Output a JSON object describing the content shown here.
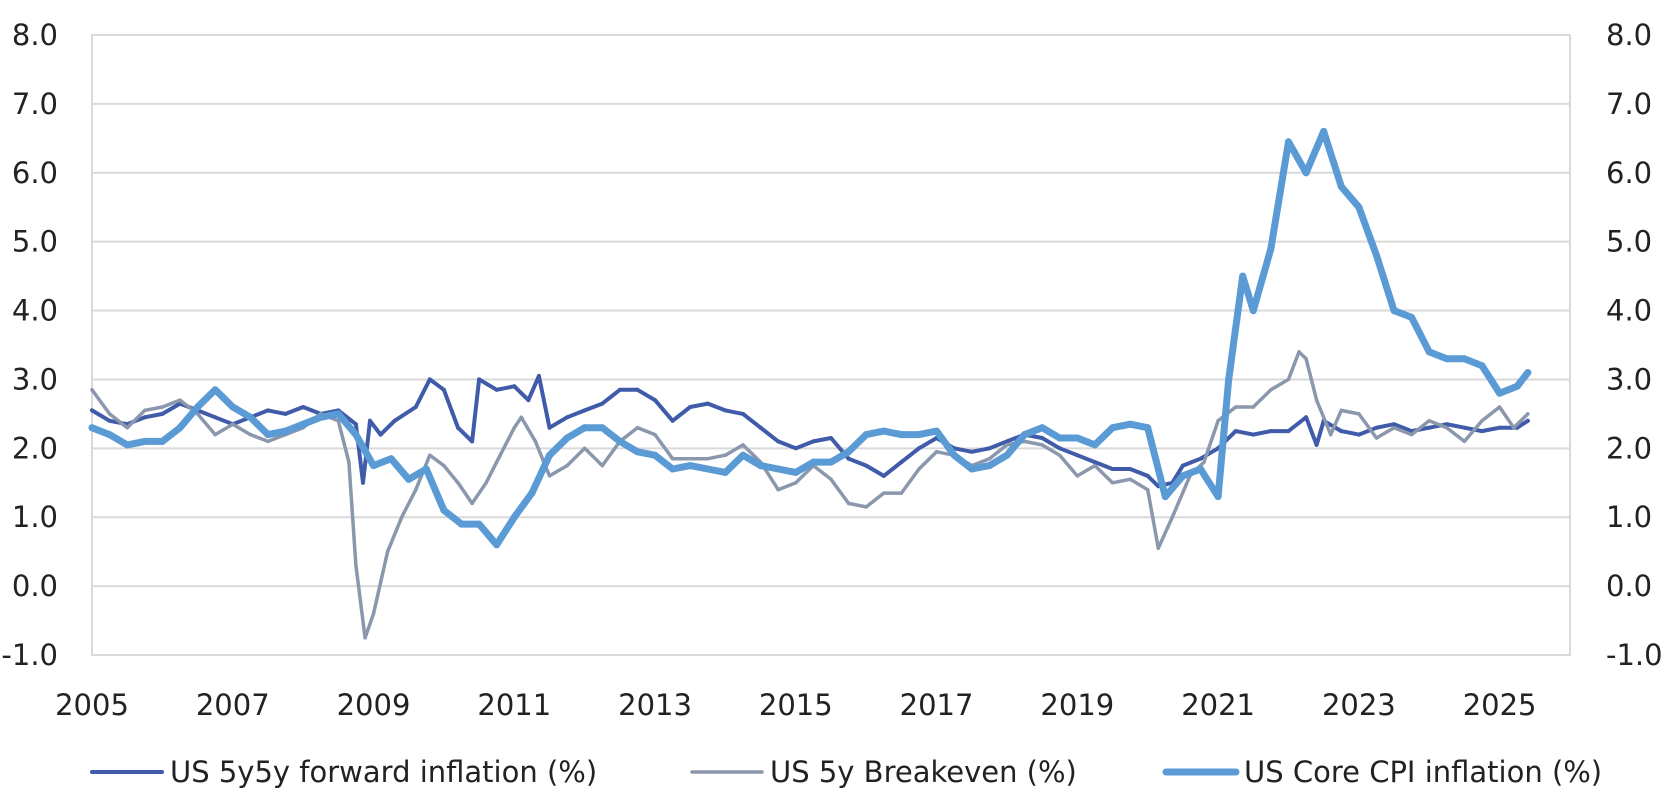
{
  "chart_data": {
    "type": "line",
    "title": "",
    "xlabel": "",
    "ylabel": "",
    "y_left_ticks": [
      "-1.0",
      "0.0",
      "1.0",
      "2.0",
      "3.0",
      "4.0",
      "5.0",
      "6.0",
      "7.0",
      "8.0"
    ],
    "y_right_ticks": [
      "-1.0",
      "0.0",
      "1.0",
      "2.0",
      "3.0",
      "4.0",
      "5.0",
      "6.0",
      "7.0",
      "8.0"
    ],
    "x_ticks": [
      "2005",
      "2007",
      "2009",
      "2011",
      "2013",
      "2015",
      "2017",
      "2019",
      "2021",
      "2023",
      "2025"
    ],
    "xlim": [
      2005,
      2026
    ],
    "ylim": [
      -1,
      8
    ],
    "grid": true,
    "legend_position": "bottom",
    "series": [
      {
        "name": "US 5y5y forward inflation (%)",
        "color": "#3f5ba9",
        "points": [
          [
            2005.0,
            2.55
          ],
          [
            2005.25,
            2.4
          ],
          [
            2005.5,
            2.35
          ],
          [
            2005.75,
            2.45
          ],
          [
            2006.0,
            2.5
          ],
          [
            2006.25,
            2.65
          ],
          [
            2006.5,
            2.55
          ],
          [
            2006.75,
            2.45
          ],
          [
            2007.0,
            2.35
          ],
          [
            2007.25,
            2.45
          ],
          [
            2007.5,
            2.55
          ],
          [
            2007.75,
            2.5
          ],
          [
            2008.0,
            2.6
          ],
          [
            2008.25,
            2.5
          ],
          [
            2008.5,
            2.55
          ],
          [
            2008.75,
            2.35
          ],
          [
            2008.85,
            1.5
          ],
          [
            2008.95,
            2.4
          ],
          [
            2009.1,
            2.2
          ],
          [
            2009.3,
            2.4
          ],
          [
            2009.6,
            2.6
          ],
          [
            2009.8,
            3.0
          ],
          [
            2010.0,
            2.85
          ],
          [
            2010.2,
            2.3
          ],
          [
            2010.4,
            2.1
          ],
          [
            2010.5,
            3.0
          ],
          [
            2010.75,
            2.85
          ],
          [
            2011.0,
            2.9
          ],
          [
            2011.2,
            2.7
          ],
          [
            2011.35,
            3.05
          ],
          [
            2011.5,
            2.3
          ],
          [
            2011.75,
            2.45
          ],
          [
            2012.0,
            2.55
          ],
          [
            2012.25,
            2.65
          ],
          [
            2012.5,
            2.85
          ],
          [
            2012.75,
            2.85
          ],
          [
            2013.0,
            2.7
          ],
          [
            2013.25,
            2.4
          ],
          [
            2013.5,
            2.6
          ],
          [
            2013.75,
            2.65
          ],
          [
            2014.0,
            2.55
          ],
          [
            2014.25,
            2.5
          ],
          [
            2014.5,
            2.3
          ],
          [
            2014.75,
            2.1
          ],
          [
            2015.0,
            2.0
          ],
          [
            2015.25,
            2.1
          ],
          [
            2015.5,
            2.15
          ],
          [
            2015.75,
            1.85
          ],
          [
            2016.0,
            1.75
          ],
          [
            2016.25,
            1.6
          ],
          [
            2016.5,
            1.8
          ],
          [
            2016.75,
            2.0
          ],
          [
            2017.0,
            2.15
          ],
          [
            2017.25,
            2.0
          ],
          [
            2017.5,
            1.95
          ],
          [
            2017.75,
            2.0
          ],
          [
            2018.0,
            2.1
          ],
          [
            2018.25,
            2.2
          ],
          [
            2018.5,
            2.15
          ],
          [
            2018.75,
            2.0
          ],
          [
            2019.0,
            1.9
          ],
          [
            2019.25,
            1.8
          ],
          [
            2019.5,
            1.7
          ],
          [
            2019.75,
            1.7
          ],
          [
            2020.0,
            1.6
          ],
          [
            2020.15,
            1.45
          ],
          [
            2020.35,
            1.5
          ],
          [
            2020.5,
            1.75
          ],
          [
            2020.75,
            1.85
          ],
          [
            2021.0,
            2.0
          ],
          [
            2021.25,
            2.25
          ],
          [
            2021.5,
            2.2
          ],
          [
            2021.75,
            2.25
          ],
          [
            2022.0,
            2.25
          ],
          [
            2022.25,
            2.45
          ],
          [
            2022.4,
            2.05
          ],
          [
            2022.5,
            2.4
          ],
          [
            2022.75,
            2.25
          ],
          [
            2023.0,
            2.2
          ],
          [
            2023.25,
            2.3
          ],
          [
            2023.5,
            2.35
          ],
          [
            2023.75,
            2.25
          ],
          [
            2024.0,
            2.3
          ],
          [
            2024.25,
            2.35
          ],
          [
            2024.5,
            2.3
          ],
          [
            2024.75,
            2.25
          ],
          [
            2025.0,
            2.3
          ],
          [
            2025.25,
            2.3
          ],
          [
            2025.4,
            2.4
          ]
        ]
      },
      {
        "name": "US 5y Breakeven (%)",
        "color": "#8a97ac",
        "points": [
          [
            2005.0,
            2.85
          ],
          [
            2005.25,
            2.5
          ],
          [
            2005.5,
            2.3
          ],
          [
            2005.75,
            2.55
          ],
          [
            2006.0,
            2.6
          ],
          [
            2006.25,
            2.7
          ],
          [
            2006.5,
            2.5
          ],
          [
            2006.75,
            2.2
          ],
          [
            2007.0,
            2.35
          ],
          [
            2007.25,
            2.2
          ],
          [
            2007.5,
            2.1
          ],
          [
            2007.75,
            2.2
          ],
          [
            2008.0,
            2.3
          ],
          [
            2008.25,
            2.5
          ],
          [
            2008.5,
            2.4
          ],
          [
            2008.65,
            1.8
          ],
          [
            2008.75,
            0.3
          ],
          [
            2008.88,
            -0.75
          ],
          [
            2009.0,
            -0.4
          ],
          [
            2009.2,
            0.5
          ],
          [
            2009.4,
            1.0
          ],
          [
            2009.6,
            1.4
          ],
          [
            2009.8,
            1.9
          ],
          [
            2010.0,
            1.75
          ],
          [
            2010.2,
            1.5
          ],
          [
            2010.4,
            1.2
          ],
          [
            2010.6,
            1.5
          ],
          [
            2010.8,
            1.9
          ],
          [
            2011.0,
            2.3
          ],
          [
            2011.1,
            2.45
          ],
          [
            2011.3,
            2.1
          ],
          [
            2011.5,
            1.6
          ],
          [
            2011.75,
            1.75
          ],
          [
            2012.0,
            2.0
          ],
          [
            2012.25,
            1.75
          ],
          [
            2012.5,
            2.1
          ],
          [
            2012.75,
            2.3
          ],
          [
            2013.0,
            2.2
          ],
          [
            2013.25,
            1.85
          ],
          [
            2013.5,
            1.85
          ],
          [
            2013.75,
            1.85
          ],
          [
            2014.0,
            1.9
          ],
          [
            2014.25,
            2.05
          ],
          [
            2014.5,
            1.8
          ],
          [
            2014.75,
            1.4
          ],
          [
            2015.0,
            1.5
          ],
          [
            2015.25,
            1.75
          ],
          [
            2015.5,
            1.55
          ],
          [
            2015.75,
            1.2
          ],
          [
            2016.0,
            1.15
          ],
          [
            2016.25,
            1.35
          ],
          [
            2016.5,
            1.35
          ],
          [
            2016.75,
            1.7
          ],
          [
            2017.0,
            1.95
          ],
          [
            2017.25,
            1.9
          ],
          [
            2017.5,
            1.75
          ],
          [
            2017.75,
            1.85
          ],
          [
            2018.0,
            2.05
          ],
          [
            2018.25,
            2.1
          ],
          [
            2018.5,
            2.05
          ],
          [
            2018.75,
            1.9
          ],
          [
            2019.0,
            1.6
          ],
          [
            2019.25,
            1.75
          ],
          [
            2019.5,
            1.5
          ],
          [
            2019.75,
            1.55
          ],
          [
            2020.0,
            1.4
          ],
          [
            2020.15,
            0.55
          ],
          [
            2020.35,
            1.0
          ],
          [
            2020.6,
            1.6
          ],
          [
            2020.8,
            1.8
          ],
          [
            2021.0,
            2.4
          ],
          [
            2021.25,
            2.6
          ],
          [
            2021.5,
            2.6
          ],
          [
            2021.75,
            2.85
          ],
          [
            2022.0,
            3.0
          ],
          [
            2022.15,
            3.4
          ],
          [
            2022.25,
            3.3
          ],
          [
            2022.4,
            2.7
          ],
          [
            2022.6,
            2.2
          ],
          [
            2022.75,
            2.55
          ],
          [
            2023.0,
            2.5
          ],
          [
            2023.25,
            2.15
          ],
          [
            2023.5,
            2.3
          ],
          [
            2023.75,
            2.2
          ],
          [
            2024.0,
            2.4
          ],
          [
            2024.25,
            2.3
          ],
          [
            2024.5,
            2.1
          ],
          [
            2024.75,
            2.4
          ],
          [
            2025.0,
            2.6
          ],
          [
            2025.2,
            2.3
          ],
          [
            2025.4,
            2.5
          ]
        ]
      },
      {
        "name": "US Core CPI inflation (%)",
        "color": "#5b9bd5",
        "points": [
          [
            2005.0,
            2.3
          ],
          [
            2005.25,
            2.2
          ],
          [
            2005.5,
            2.05
          ],
          [
            2005.75,
            2.1
          ],
          [
            2006.0,
            2.1
          ],
          [
            2006.25,
            2.3
          ],
          [
            2006.5,
            2.6
          ],
          [
            2006.75,
            2.85
          ],
          [
            2007.0,
            2.6
          ],
          [
            2007.25,
            2.45
          ],
          [
            2007.5,
            2.2
          ],
          [
            2007.75,
            2.25
          ],
          [
            2008.0,
            2.35
          ],
          [
            2008.25,
            2.45
          ],
          [
            2008.5,
            2.5
          ],
          [
            2008.75,
            2.2
          ],
          [
            2009.0,
            1.75
          ],
          [
            2009.25,
            1.85
          ],
          [
            2009.5,
            1.55
          ],
          [
            2009.75,
            1.7
          ],
          [
            2010.0,
            1.1
          ],
          [
            2010.25,
            0.9
          ],
          [
            2010.5,
            0.9
          ],
          [
            2010.75,
            0.6
          ],
          [
            2011.0,
            1.0
          ],
          [
            2011.25,
            1.35
          ],
          [
            2011.5,
            1.9
          ],
          [
            2011.75,
            2.15
          ],
          [
            2012.0,
            2.3
          ],
          [
            2012.25,
            2.3
          ],
          [
            2012.5,
            2.1
          ],
          [
            2012.75,
            1.95
          ],
          [
            2013.0,
            1.9
          ],
          [
            2013.25,
            1.7
          ],
          [
            2013.5,
            1.75
          ],
          [
            2013.75,
            1.7
          ],
          [
            2014.0,
            1.65
          ],
          [
            2014.25,
            1.9
          ],
          [
            2014.5,
            1.75
          ],
          [
            2014.75,
            1.7
          ],
          [
            2015.0,
            1.65
          ],
          [
            2015.25,
            1.8
          ],
          [
            2015.5,
            1.8
          ],
          [
            2015.75,
            1.95
          ],
          [
            2016.0,
            2.2
          ],
          [
            2016.25,
            2.25
          ],
          [
            2016.5,
            2.2
          ],
          [
            2016.75,
            2.2
          ],
          [
            2017.0,
            2.25
          ],
          [
            2017.25,
            1.9
          ],
          [
            2017.5,
            1.7
          ],
          [
            2017.75,
            1.75
          ],
          [
            2018.0,
            1.9
          ],
          [
            2018.25,
            2.2
          ],
          [
            2018.5,
            2.3
          ],
          [
            2018.75,
            2.15
          ],
          [
            2019.0,
            2.15
          ],
          [
            2019.25,
            2.05
          ],
          [
            2019.5,
            2.3
          ],
          [
            2019.75,
            2.35
          ],
          [
            2020.0,
            2.3
          ],
          [
            2020.25,
            1.3
          ],
          [
            2020.5,
            1.6
          ],
          [
            2020.75,
            1.7
          ],
          [
            2021.0,
            1.3
          ],
          [
            2021.15,
            3.0
          ],
          [
            2021.35,
            4.5
          ],
          [
            2021.5,
            4.0
          ],
          [
            2021.75,
            4.9
          ],
          [
            2022.0,
            6.45
          ],
          [
            2022.25,
            6.0
          ],
          [
            2022.5,
            6.6
          ],
          [
            2022.75,
            5.8
          ],
          [
            2023.0,
            5.5
          ],
          [
            2023.25,
            4.8
          ],
          [
            2023.5,
            4.0
          ],
          [
            2023.75,
            3.9
          ],
          [
            2024.0,
            3.4
          ],
          [
            2024.25,
            3.3
          ],
          [
            2024.5,
            3.3
          ],
          [
            2024.75,
            3.2
          ],
          [
            2025.0,
            2.8
          ],
          [
            2025.25,
            2.9
          ],
          [
            2025.4,
            3.1
          ]
        ]
      }
    ]
  }
}
